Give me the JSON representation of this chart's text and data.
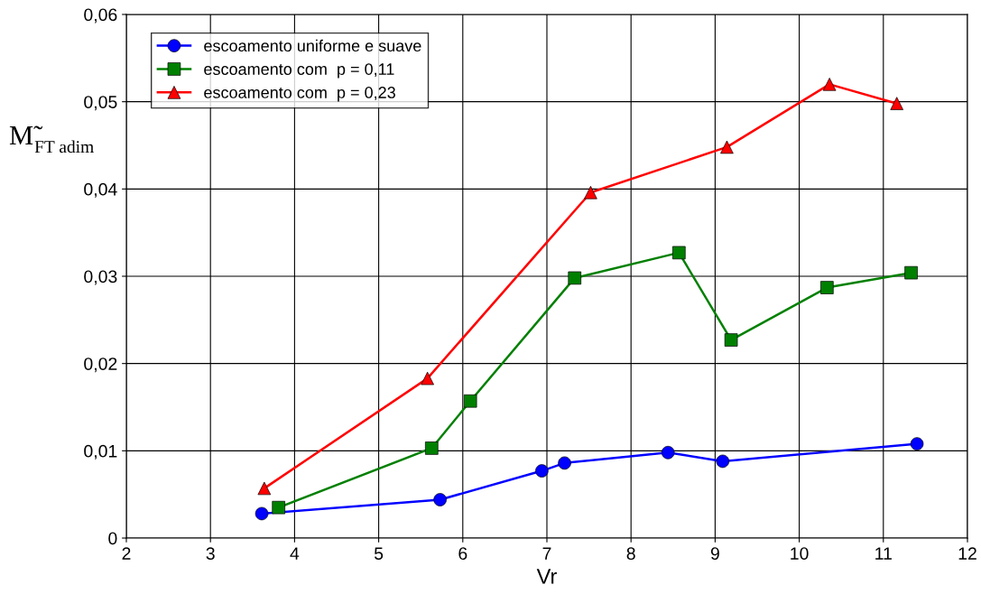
{
  "chart_data": {
    "type": "line",
    "xlabel": "Vr",
    "ylabel": "M̃$_{FT adim}$",
    "xlim": [
      2,
      12
    ],
    "xticks": [
      2,
      3,
      4,
      5,
      6,
      7,
      8,
      9,
      10,
      11,
      12
    ],
    "ylim": [
      0,
      0.06
    ],
    "yticks": [
      {
        "value": 0,
        "label": "0"
      },
      {
        "value": 0.01,
        "label": "0,01"
      },
      {
        "value": 0.02,
        "label": "0,02"
      },
      {
        "value": 0.03,
        "label": "0,03"
      },
      {
        "value": 0.04,
        "label": "0,04"
      },
      {
        "value": 0.05,
        "label": "0,05"
      },
      {
        "value": 0.06,
        "label": "0,06"
      }
    ],
    "grid": true,
    "legend": "top left",
    "series": [
      {
        "name": "escoamento uniforme e suave",
        "color": "#0000ff",
        "marker": "circle",
        "x": [
          3.61,
          5.73,
          6.94,
          7.21,
          8.44,
          9.09,
          11.4
        ],
        "values": [
          0.0028,
          0.0044,
          0.0077,
          0.0086,
          0.0098,
          0.0088,
          0.0108
        ]
      },
      {
        "name": "escoamento com  p = 0,11",
        "color": "#008000",
        "marker": "square",
        "x": [
          3.81,
          5.63,
          6.09,
          7.33,
          8.57,
          9.19,
          10.33,
          11.33
        ],
        "values": [
          0.0035,
          0.0103,
          0.0157,
          0.0298,
          0.0327,
          0.0227,
          0.0287,
          0.0304
        ]
      },
      {
        "name": "escoamento com  p = 0,23",
        "color": "#ff0000",
        "marker": "triangle",
        "x": [
          3.64,
          5.58,
          7.52,
          9.14,
          10.36,
          11.16
        ],
        "values": [
          0.0057,
          0.0183,
          0.0396,
          0.0448,
          0.052,
          0.0498
        ]
      }
    ]
  }
}
